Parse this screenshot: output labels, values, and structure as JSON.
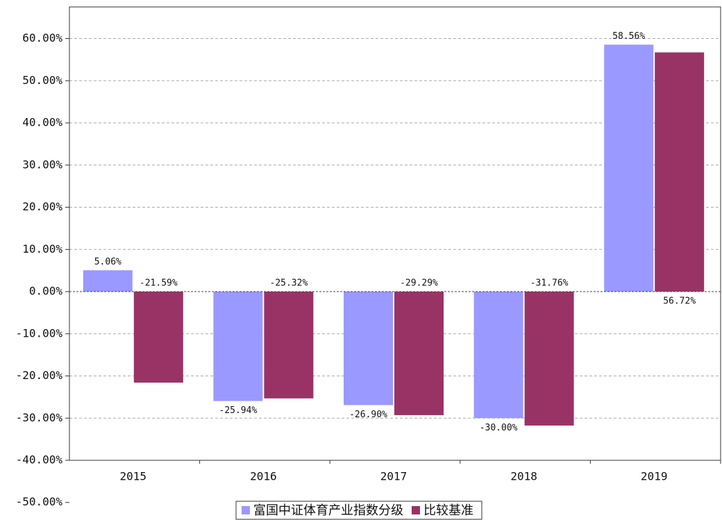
{
  "chart_data": {
    "type": "bar",
    "categories": [
      "2015",
      "2016",
      "2017",
      "2018",
      "2019"
    ],
    "series": [
      {
        "name": "富国中证体育产业指数分级",
        "color": "#9999ff",
        "values": [
          5.06,
          -25.94,
          -26.9,
          -30.0,
          58.56
        ],
        "value_labels": [
          "5.06%",
          "-25.94%",
          "-26.90%",
          "-30.00%",
          "58.56%"
        ]
      },
      {
        "name": "比较基准",
        "color": "#993366",
        "values": [
          -21.59,
          -25.32,
          -29.29,
          -31.76,
          56.72
        ],
        "value_labels": [
          "-21.59%",
          "-25.32%",
          "-29.29%",
          "-31.76%",
          "56.72%"
        ]
      }
    ],
    "ylim": [
      -40,
      67.5
    ],
    "yticks": [
      {
        "value": -50,
        "label": "-50.00%"
      },
      {
        "value": -40,
        "label": "-40.00%"
      },
      {
        "value": -30,
        "label": "-30.00%"
      },
      {
        "value": -20,
        "label": "-20.00%"
      },
      {
        "value": -10,
        "label": "-10.00%"
      },
      {
        "value": 0,
        "label": "0.00%"
      },
      {
        "value": 10,
        "label": "10.00%"
      },
      {
        "value": 20,
        "label": "20.00%"
      },
      {
        "value": 30,
        "label": "30.00%"
      },
      {
        "value": 40,
        "label": "40.00%"
      },
      {
        "value": 50,
        "label": "50.00%"
      },
      {
        "value": 60,
        "label": "60.00%"
      }
    ],
    "grid": true
  }
}
